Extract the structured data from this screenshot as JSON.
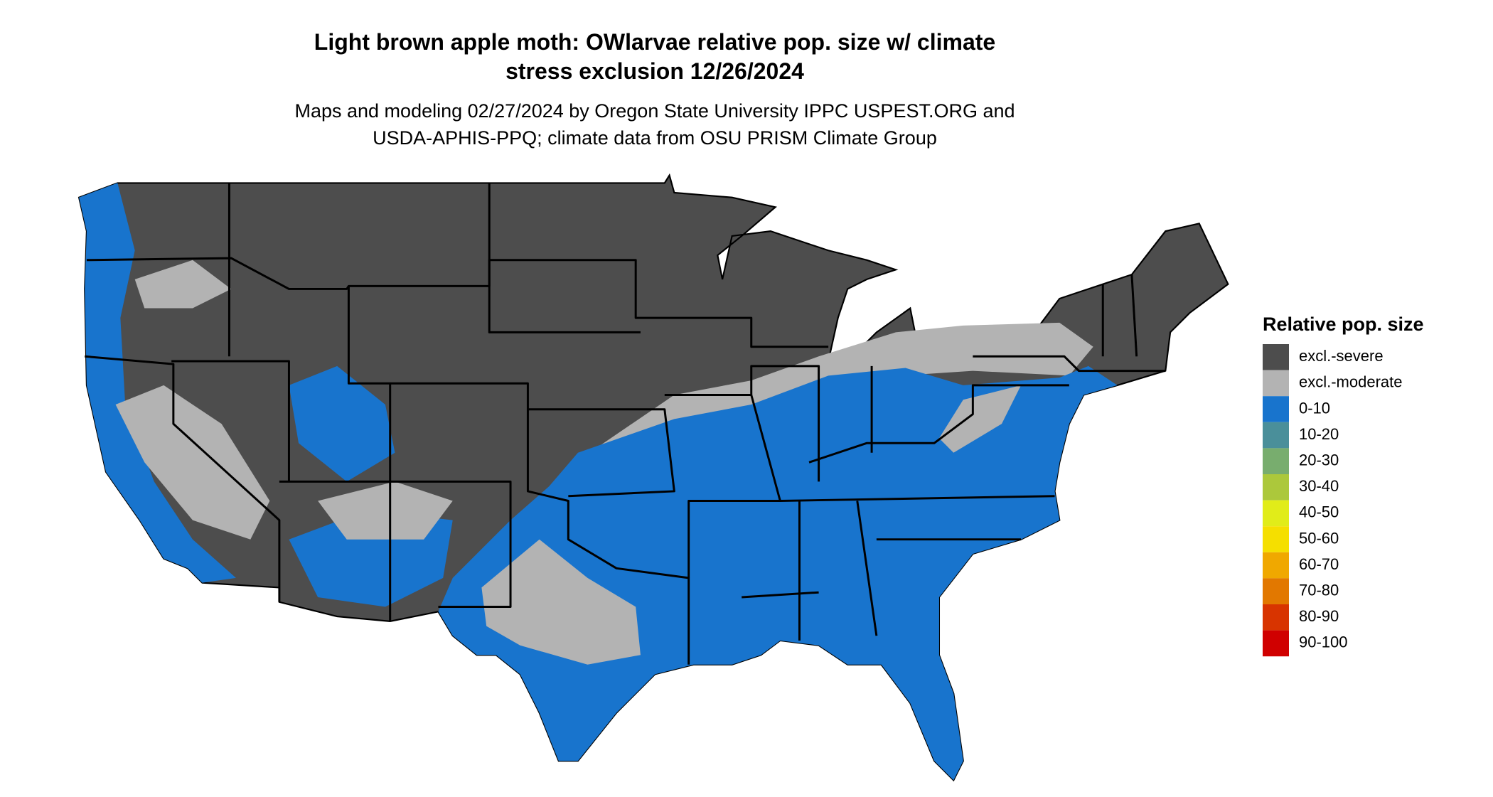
{
  "header": {
    "title": [
      "Light brown apple moth: OWlarvae relative pop. size w/ climate",
      "stress exclusion 12/26/2024"
    ],
    "subtitle": [
      "Maps and modeling 02/27/2024 by Oregon State University IPPC USPEST.ORG and",
      "USDA-APHIS-PPQ; climate data from OSU PRISM Climate Group"
    ]
  },
  "legend": {
    "title": "Relative pop. size",
    "items": [
      {
        "label": "excl.-severe",
        "color": "#4d4d4d"
      },
      {
        "label": "excl.-moderate",
        "color": "#b3b3b3"
      },
      {
        "label": "0-10",
        "color": "#1874cd"
      },
      {
        "label": "10-20",
        "color": "#4a8f9a"
      },
      {
        "label": "20-30",
        "color": "#78ad6e"
      },
      {
        "label": "30-40",
        "color": "#acc83b"
      },
      {
        "label": "40-50",
        "color": "#e1ec19"
      },
      {
        "label": "50-60",
        "color": "#f5df00"
      },
      {
        "label": "60-70",
        "color": "#f0a800"
      },
      {
        "label": "70-80",
        "color": "#e27800"
      },
      {
        "label": "80-90",
        "color": "#d83400"
      },
      {
        "label": "90-100",
        "color": "#d00000"
      }
    ]
  }
}
